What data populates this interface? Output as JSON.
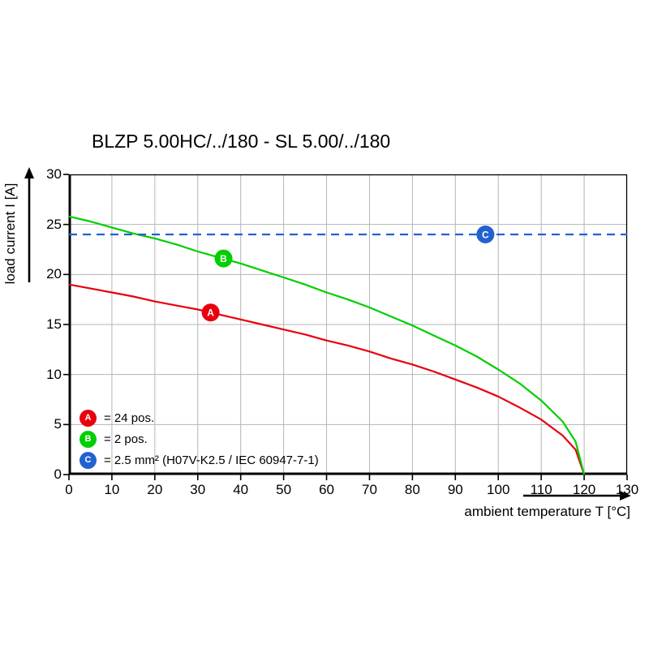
{
  "page": {
    "background": "#ffffff"
  },
  "chart_data": {
    "type": "line",
    "title": "BLZP 5.00HC/../180 - SL 5.00/../180",
    "xlabel": "ambient temperature T [°C]",
    "ylabel": "load current I [A]",
    "xlim": [
      0,
      130
    ],
    "ylim": [
      0,
      30
    ],
    "x_ticks": [
      0,
      10,
      20,
      30,
      40,
      50,
      60,
      70,
      80,
      90,
      100,
      110,
      120,
      130
    ],
    "y_ticks": [
      0,
      5,
      10,
      15,
      20,
      25,
      30
    ],
    "grid": true,
    "grid_color": "#b5b5b5",
    "axis_color": "#000000",
    "series": [
      {
        "name": "A",
        "label": "24 pos.",
        "color": "#e8000e",
        "style": "solid",
        "x": [
          0,
          5,
          10,
          15,
          20,
          25,
          30,
          35,
          40,
          45,
          50,
          55,
          60,
          65,
          70,
          75,
          80,
          85,
          90,
          95,
          100,
          105,
          110,
          115,
          118,
          120
        ],
        "y": [
          19.0,
          18.6,
          18.2,
          17.8,
          17.3,
          16.9,
          16.5,
          16.0,
          15.5,
          15.0,
          14.5,
          14.0,
          13.4,
          12.9,
          12.3,
          11.6,
          11.0,
          10.3,
          9.5,
          8.7,
          7.8,
          6.7,
          5.5,
          3.9,
          2.5,
          0
        ],
        "marker": {
          "letter": "A",
          "x": 33,
          "y": 16.2
        }
      },
      {
        "name": "B",
        "label": "2 pos.",
        "color": "#00cf00",
        "style": "solid",
        "x": [
          0,
          5,
          10,
          15,
          20,
          25,
          30,
          35,
          40,
          45,
          50,
          55,
          60,
          65,
          70,
          75,
          80,
          85,
          90,
          95,
          100,
          105,
          110,
          115,
          118,
          120
        ],
        "y": [
          25.8,
          25.3,
          24.7,
          24.1,
          23.6,
          23.0,
          22.3,
          21.7,
          21.1,
          20.4,
          19.7,
          19.0,
          18.2,
          17.5,
          16.7,
          15.8,
          14.9,
          13.9,
          12.9,
          11.8,
          10.5,
          9.1,
          7.4,
          5.3,
          3.3,
          0
        ],
        "marker": {
          "letter": "B",
          "x": 36,
          "y": 21.6
        }
      },
      {
        "name": "C",
        "label": "2.5 mm² (H07V-K2.5 / IEC 60947-7-1)",
        "color": "#2261d2",
        "style": "dashed",
        "x": [
          0,
          130
        ],
        "y": [
          24,
          24
        ],
        "marker": {
          "letter": "C",
          "x": 97,
          "y": 24
        }
      }
    ],
    "legend": {
      "position": "bottom-left",
      "items": [
        {
          "letter": "A",
          "color": "#e8000e",
          "text": "= 24 pos."
        },
        {
          "letter": "B",
          "color": "#00cf00",
          "text": "= 2 pos."
        },
        {
          "letter": "C",
          "color": "#2261d2",
          "text": "= 2.5 mm² (H07V-K2.5 / IEC 60947-7-1)"
        }
      ]
    }
  }
}
